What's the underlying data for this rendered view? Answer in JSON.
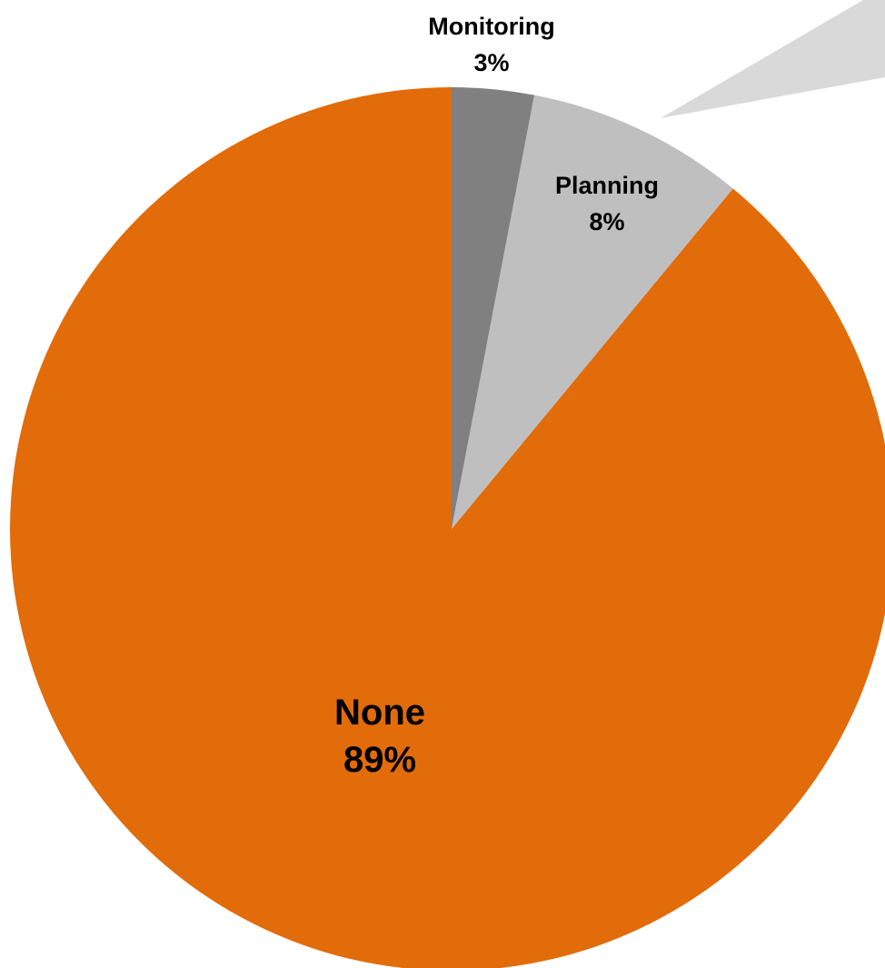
{
  "chart_data": {
    "type": "pie",
    "start_angle": "12 o'clock",
    "direction": "clockwise",
    "slices": [
      {
        "label": "Monitoring",
        "value": 3,
        "display": "3%",
        "color": "#808080"
      },
      {
        "label": "Planning",
        "value": 8,
        "display": "8%",
        "color": "#bfbfbf"
      },
      {
        "label": "None",
        "value": 89,
        "display": "89%",
        "color": "#e26b0a"
      }
    ],
    "callout_color": "#d9d9d9",
    "legend": "none"
  }
}
